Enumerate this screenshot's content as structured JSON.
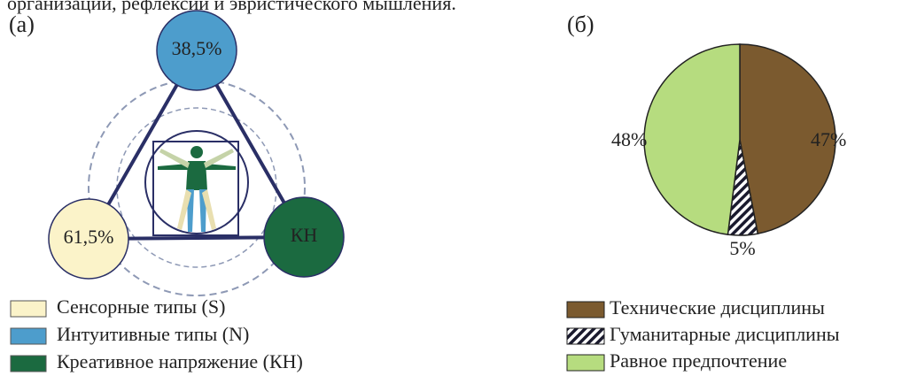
{
  "caption_fragment": "организации, рефлексии и эвристического мышления.",
  "diagram": {
    "panel_label": "(а)",
    "nodes": [
      {
        "label": "38,5%",
        "color": "#4d9dcc"
      },
      {
        "label": "61,5%",
        "color": "#fbf3c9"
      },
      {
        "label": "КН",
        "color": "#1b6a40"
      }
    ],
    "legend": [
      "Сенсорные типы (S)",
      "Интуитивные типы (N)",
      "Креативное напряжение (КН)"
    ]
  },
  "chart_data": {
    "type": "pie",
    "panel_label": "(б)",
    "categories": [
      "Технические дисциплины",
      "Гуманитарные дисциплины",
      "Равное предпочтение"
    ],
    "values": [
      47,
      5,
      48
    ],
    "value_labels": [
      "47%",
      "5%",
      "48%"
    ],
    "colors": [
      "#7b5a2f",
      "hatch",
      "#b6dc7f"
    ]
  }
}
